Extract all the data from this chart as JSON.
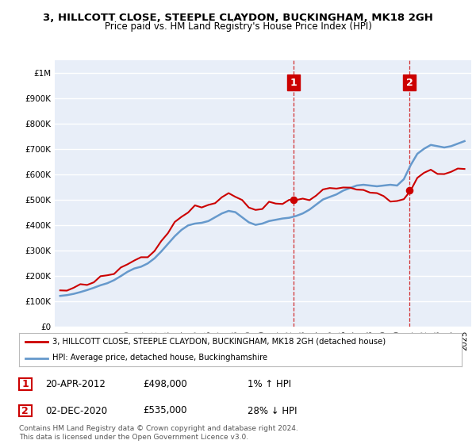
{
  "title": "3, HILLCOTT CLOSE, STEEPLE CLAYDON, BUCKINGHAM, MK18 2GH",
  "subtitle": "Price paid vs. HM Land Registry's House Price Index (HPI)",
  "legend_line1": "3, HILLCOTT CLOSE, STEEPLE CLAYDON, BUCKINGHAM, MK18 2GH (detached house)",
  "legend_line2": "HPI: Average price, detached house, Buckinghamshire",
  "annotation1_date": "20-APR-2012",
  "annotation1_price": "£498,000",
  "annotation1_hpi": "1% ↑ HPI",
  "annotation2_date": "02-DEC-2020",
  "annotation2_price": "£535,000",
  "annotation2_hpi": "28% ↓ HPI",
  "footer": "Contains HM Land Registry data © Crown copyright and database right 2024.\nThis data is licensed under the Open Government Licence v3.0.",
  "hpi_color": "#6699cc",
  "price_color": "#cc0000",
  "dot_color": "#cc0000",
  "annotation_box_color": "#cc0000",
  "bg_color": "#ffffff",
  "plot_bg_color": "#e8eef8",
  "grid_color": "#ffffff",
  "ylim": [
    0,
    1050000
  ],
  "yticks": [
    0,
    100000,
    200000,
    300000,
    400000,
    500000,
    600000,
    700000,
    800000,
    900000,
    1000000
  ],
  "ytick_labels": [
    "£0",
    "£100K",
    "£200K",
    "£300K",
    "£400K",
    "£500K",
    "£600K",
    "£700K",
    "£800K",
    "£900K",
    "£1M"
  ],
  "sale1_year": 2012.3,
  "sale1_price": 498000,
  "sale2_year": 2020.92,
  "sale2_price": 535000
}
